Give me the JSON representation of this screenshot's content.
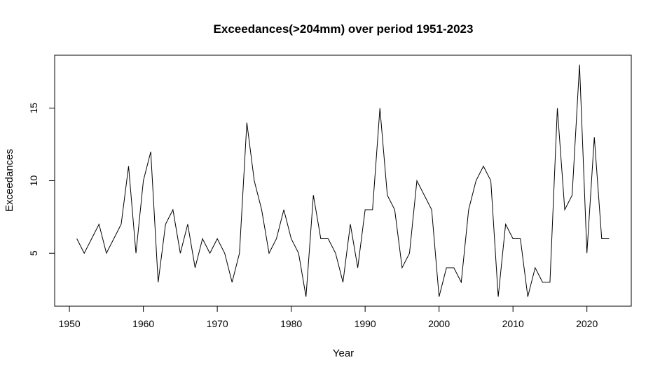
{
  "chart_data": {
    "type": "line",
    "title": "Exceedances(>204mm) over period 1951-2023",
    "xlabel": "Year",
    "ylabel": "Exceedances",
    "xlim": [
      1948,
      2026
    ],
    "ylim": [
      1.35,
      18.65
    ],
    "xticks": [
      1950,
      1960,
      1970,
      1980,
      1990,
      2000,
      2010,
      2020
    ],
    "yticks": [
      5,
      10,
      15
    ],
    "grid": false,
    "line_color": "#000000",
    "x": [
      1951,
      1952,
      1953,
      1954,
      1955,
      1956,
      1957,
      1958,
      1959,
      1960,
      1961,
      1962,
      1963,
      1964,
      1965,
      1966,
      1967,
      1968,
      1969,
      1970,
      1971,
      1972,
      1973,
      1974,
      1975,
      1976,
      1977,
      1978,
      1979,
      1980,
      1981,
      1982,
      1983,
      1984,
      1985,
      1986,
      1987,
      1988,
      1989,
      1990,
      1991,
      1992,
      1993,
      1994,
      1995,
      1996,
      1997,
      1998,
      1999,
      2000,
      2001,
      2002,
      2003,
      2004,
      2005,
      2006,
      2007,
      2008,
      2009,
      2010,
      2011,
      2012,
      2013,
      2014,
      2015,
      2016,
      2017,
      2018,
      2019,
      2020,
      2021,
      2022,
      2023
    ],
    "values": [
      6,
      5,
      6,
      7,
      5,
      6,
      7,
      11,
      5,
      10,
      12,
      3,
      7,
      8,
      5,
      7,
      4,
      6,
      5,
      6,
      5,
      3,
      5,
      14,
      10,
      8,
      5,
      6,
      8,
      6,
      5,
      2,
      9,
      6,
      6,
      5,
      3,
      7,
      4,
      8,
      8,
      15,
      9,
      8,
      4,
      5,
      10,
      9,
      8,
      2,
      4,
      4,
      3,
      8,
      10,
      11,
      10,
      2,
      7,
      6,
      6,
      2,
      4,
      3,
      3,
      15,
      8,
      9,
      18,
      5,
      13,
      6,
      6
    ]
  }
}
